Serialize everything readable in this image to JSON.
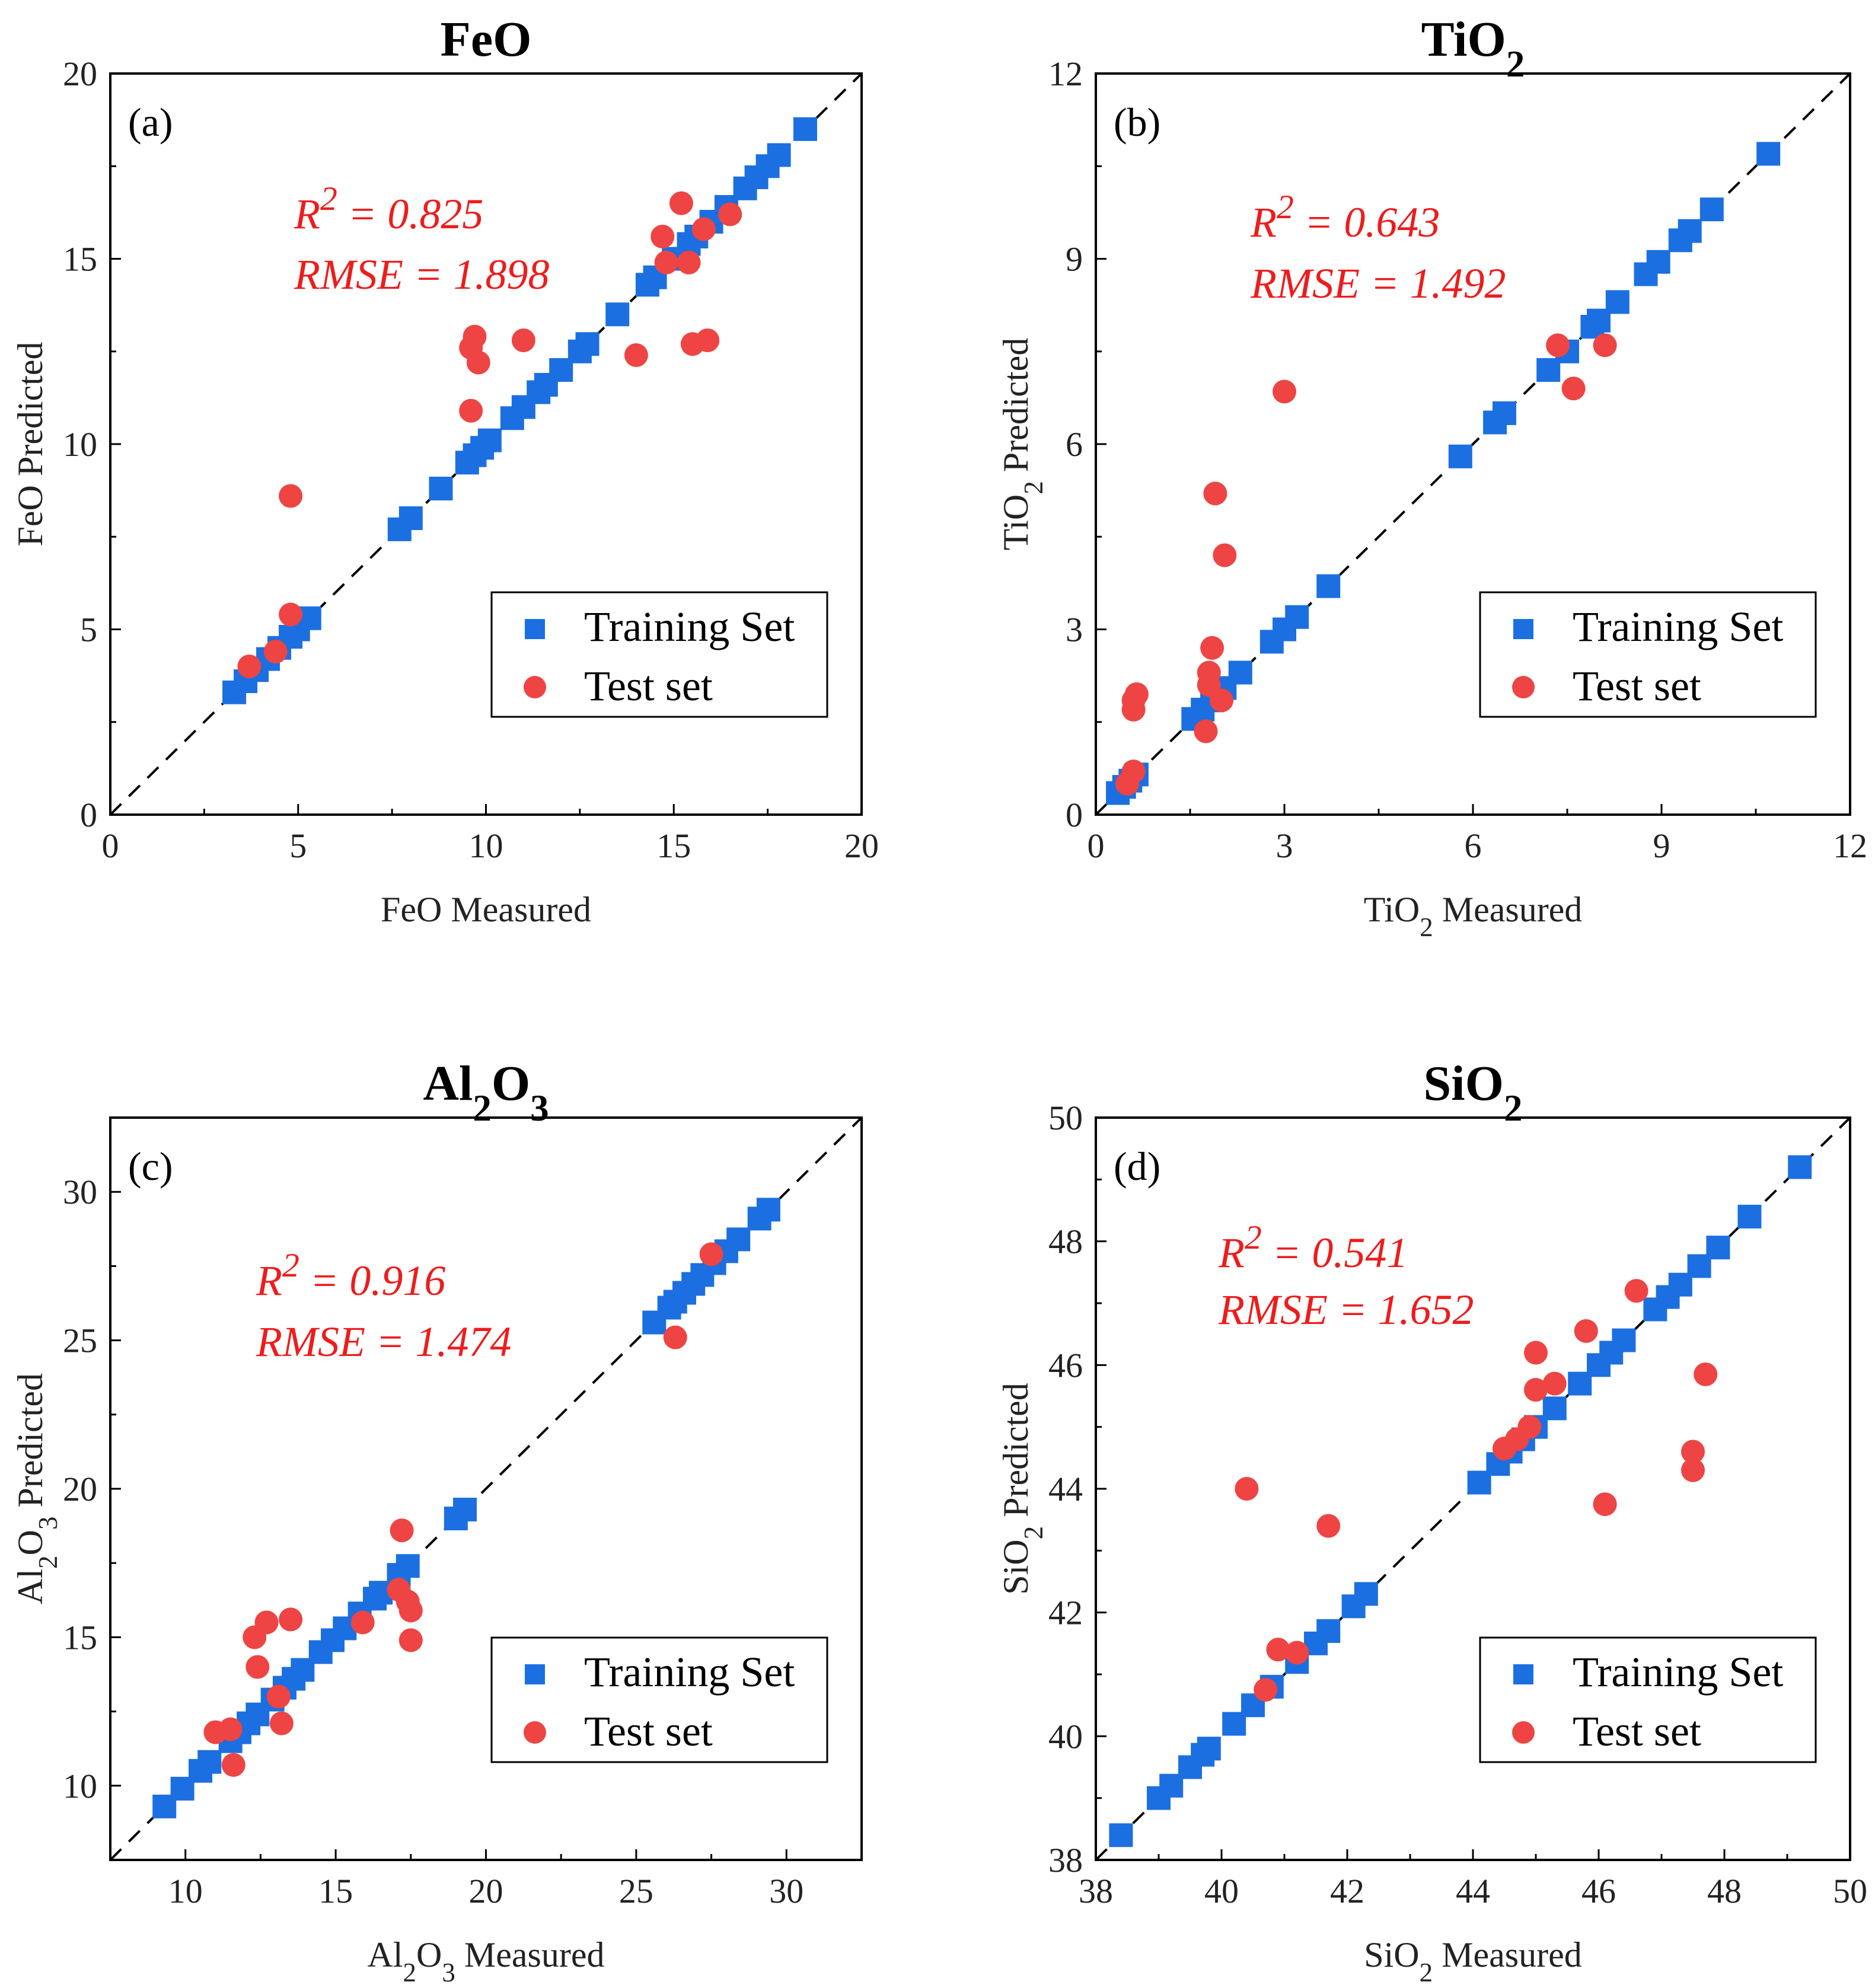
{
  "colors": {
    "training": "#1c6fe0",
    "test": "#ee4444",
    "annotation": "#ee1c1c"
  },
  "legend": {
    "training_label": "Training Set",
    "test_label": "Test set"
  },
  "chart_data": [
    {
      "type": "scatter",
      "panel_label": "(a)",
      "title": [
        [
          "FeO",
          ""
        ]
      ],
      "xlabel": [
        [
          "FeO Measured",
          ""
        ]
      ],
      "ylabel": [
        [
          "FeO Predicted",
          ""
        ]
      ],
      "xlim": [
        0,
        20
      ],
      "ylim": [
        0,
        20
      ],
      "xticks": [
        0,
        5,
        10,
        15,
        20
      ],
      "yticks": [
        0,
        5,
        10,
        15,
        20
      ],
      "r2_text": "0.825",
      "rmse_text": "1.898",
      "training": [
        3.3,
        3.6,
        3.9,
        4.2,
        4.5,
        4.8,
        5.0,
        5.3,
        7.7,
        8.0,
        8.8,
        9.5,
        9.7,
        9.9,
        10.1,
        10.7,
        11.0,
        11.4,
        11.6,
        12.0,
        12.5,
        12.7,
        13.5,
        14.3,
        14.5,
        15.0,
        15.4,
        15.6,
        16.0,
        16.4,
        16.9,
        17.2,
        17.5,
        17.8,
        18.5
      ],
      "test": [
        [
          3.7,
          4.0
        ],
        [
          4.4,
          4.4
        ],
        [
          4.8,
          5.4
        ],
        [
          4.8,
          8.6
        ],
        [
          9.6,
          10.9
        ],
        [
          9.6,
          12.6
        ],
        [
          9.7,
          12.9
        ],
        [
          9.8,
          12.2
        ],
        [
          11.0,
          12.8
        ],
        [
          14.0,
          12.4
        ],
        [
          14.7,
          15.6
        ],
        [
          14.8,
          14.9
        ],
        [
          15.2,
          16.5
        ],
        [
          15.4,
          14.9
        ],
        [
          15.5,
          12.7
        ],
        [
          15.9,
          12.8
        ],
        [
          15.8,
          15.8
        ],
        [
          16.5,
          16.2
        ]
      ]
    },
    {
      "type": "scatter",
      "panel_label": "(b)",
      "title": [
        [
          "TiO",
          ""
        ],
        [
          "2",
          "sub"
        ]
      ],
      "xlabel": [
        [
          "TiO",
          ""
        ],
        [
          "2",
          "sub"
        ],
        [
          " Measured",
          ""
        ]
      ],
      "ylabel": [
        [
          "TiO",
          ""
        ],
        [
          "2",
          "sub"
        ],
        [
          " Predicted",
          ""
        ]
      ],
      "xlim": [
        0,
        12
      ],
      "ylim": [
        0,
        12
      ],
      "xticks": [
        0,
        3,
        6,
        9,
        12
      ],
      "yticks": [
        0,
        3,
        6,
        9,
        12
      ],
      "r2_text": "0.643",
      "rmse_text": "1.492",
      "training": [
        0.35,
        0.45,
        0.55,
        0.65,
        1.55,
        1.7,
        1.85,
        2.05,
        2.3,
        2.8,
        3.0,
        3.2,
        3.7,
        5.8,
        6.35,
        6.5,
        7.2,
        7.5,
        7.9,
        8.0,
        8.3,
        8.75,
        8.95,
        9.3,
        9.45,
        9.8,
        10.7
      ],
      "test": [
        [
          0.5,
          0.5
        ],
        [
          0.6,
          0.7
        ],
        [
          0.6,
          1.7
        ],
        [
          0.6,
          1.85
        ],
        [
          0.65,
          1.95
        ],
        [
          1.75,
          1.35
        ],
        [
          1.8,
          2.1
        ],
        [
          1.8,
          2.3
        ],
        [
          1.85,
          2.7
        ],
        [
          1.9,
          5.2
        ],
        [
          2.0,
          1.85
        ],
        [
          2.05,
          4.2
        ],
        [
          3.0,
          6.85
        ],
        [
          7.35,
          7.6
        ],
        [
          7.6,
          6.9
        ],
        [
          8.1,
          7.6
        ]
      ]
    },
    {
      "type": "scatter",
      "panel_label": "(c)",
      "title": [
        [
          "Al",
          ""
        ],
        [
          "2",
          "sub"
        ],
        [
          "O",
          ""
        ],
        [
          "3",
          "sub"
        ]
      ],
      "xlabel": [
        [
          "Al",
          ""
        ],
        [
          "2",
          "sub"
        ],
        [
          "O",
          ""
        ],
        [
          "3",
          "sub"
        ],
        [
          " Measured",
          ""
        ]
      ],
      "ylabel": [
        [
          "Al",
          ""
        ],
        [
          "2",
          "sub"
        ],
        [
          "O",
          ""
        ],
        [
          "3",
          "sub"
        ],
        [
          " Predicted",
          ""
        ]
      ],
      "xlim": [
        7.5,
        32.5
      ],
      "ylim": [
        7.5,
        32.5
      ],
      "xticks": [
        10,
        15,
        20,
        25,
        30
      ],
      "yticks": [
        10,
        15,
        20,
        25,
        30
      ],
      "r2_text": "0.916",
      "rmse_text": "1.474",
      "training": [
        9.3,
        9.9,
        10.5,
        10.8,
        11.5,
        11.8,
        12.1,
        12.4,
        12.9,
        13.3,
        13.6,
        13.9,
        14.5,
        14.9,
        15.3,
        15.8,
        16.3,
        16.5,
        17.1,
        17.4,
        19.0,
        19.3,
        25.6,
        26.1,
        26.3,
        26.6,
        26.9,
        27.2,
        27.6,
        28.0,
        28.4,
        29.1,
        29.4
      ],
      "test": [
        [
          11.0,
          11.8
        ],
        [
          11.5,
          11.9
        ],
        [
          11.6,
          10.7
        ],
        [
          12.3,
          15.0
        ],
        [
          12.4,
          14.0
        ],
        [
          12.7,
          15.5
        ],
        [
          13.1,
          13.0
        ],
        [
          13.2,
          12.1
        ],
        [
          13.5,
          15.6
        ],
        [
          15.9,
          15.5
        ],
        [
          17.1,
          16.6
        ],
        [
          17.2,
          18.6
        ],
        [
          17.4,
          16.2
        ],
        [
          17.5,
          15.9
        ],
        [
          17.5,
          14.9
        ],
        [
          26.3,
          25.1
        ],
        [
          27.5,
          27.9
        ]
      ]
    },
    {
      "type": "scatter",
      "panel_label": "(d)",
      "title": [
        [
          "SiO",
          ""
        ],
        [
          "2",
          "sub"
        ]
      ],
      "xlabel": [
        [
          "SiO",
          ""
        ],
        [
          "2",
          "sub"
        ],
        [
          " Measured",
          ""
        ]
      ],
      "ylabel": [
        [
          "SiO",
          ""
        ],
        [
          "2",
          "sub"
        ],
        [
          " Predicted",
          ""
        ]
      ],
      "xlim": [
        38,
        50
      ],
      "ylim": [
        38,
        50
      ],
      "xticks": [
        38,
        40,
        42,
        44,
        46,
        48,
        50
      ],
      "yticks": [
        38,
        40,
        42,
        44,
        46,
        48,
        50
      ],
      "r2_text": "0.541",
      "rmse_text": "1.652",
      "training": [
        38.4,
        39.0,
        39.2,
        39.5,
        39.7,
        39.8,
        40.2,
        40.5,
        40.8,
        41.2,
        41.5,
        41.7,
        42.1,
        42.3,
        44.1,
        44.4,
        44.6,
        44.8,
        45.0,
        45.3,
        45.7,
        46.0,
        46.2,
        46.4,
        46.9,
        47.1,
        47.3,
        47.6,
        47.9,
        48.4,
        49.2
      ],
      "test": [
        [
          40.4,
          44.0
        ],
        [
          40.7,
          40.75
        ],
        [
          40.9,
          41.4
        ],
        [
          41.2,
          41.35
        ],
        [
          41.7,
          43.4
        ],
        [
          44.5,
          44.65
        ],
        [
          44.7,
          44.8
        ],
        [
          44.9,
          45.0
        ],
        [
          45.0,
          45.6
        ],
        [
          45.0,
          46.2
        ],
        [
          45.3,
          45.7
        ],
        [
          45.8,
          46.55
        ],
        [
          46.1,
          43.75
        ],
        [
          46.6,
          47.2
        ],
        [
          47.5,
          44.6
        ],
        [
          47.5,
          44.3
        ],
        [
          47.7,
          45.85
        ]
      ]
    }
  ]
}
